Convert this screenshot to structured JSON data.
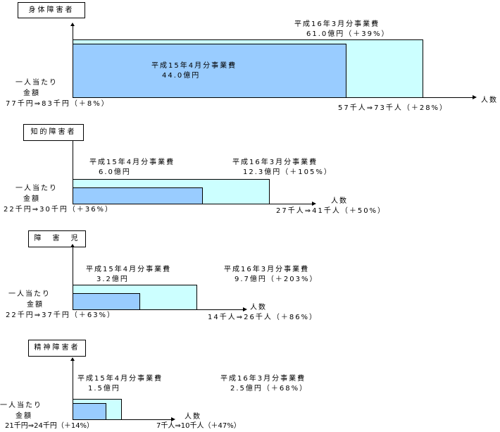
{
  "colors": {
    "before": "#99ccff",
    "after": "#ccffff"
  },
  "panels": [
    {
      "title": "身体障害者",
      "before_label": "平成15年4月分事業費",
      "before_value": "44.0億円",
      "after_label": "平成16年3月分事業費",
      "after_value": "61.0億円（＋39%）",
      "y_label_1": "一人当たり",
      "y_label_2": "金額",
      "per_person": "77千円⇒83千円（＋8%）",
      "x_label": "人数",
      "persons": "57千人⇒73千人（＋28%）"
    },
    {
      "title": "知的障害者",
      "before_label": "平成15年4月分事業費",
      "before_value": "6.0億円",
      "after_label": "平成16年3月分事業費",
      "after_value": "12.3億円（＋105%）",
      "y_label_1": "一人当たり",
      "y_label_2": "金額",
      "per_person": "22千円⇒30千円（＋36%）",
      "x_label": "人数",
      "persons": "27千人⇒41千人（＋50%）"
    },
    {
      "title": "障　害　児",
      "before_label": "平成15年4月分事業費",
      "before_value": "3.2億円",
      "after_label": "平成16年3月分事業費",
      "after_value": "9.7億円（＋203%）",
      "y_label_1": "一人当たり",
      "y_label_2": "金額",
      "per_person": "22千円⇒37千円（＋63%）",
      "x_label": "人数",
      "persons": "14千人⇒26千人（＋86%）"
    },
    {
      "title": "精神障害者",
      "before_label": "平成15年4月分事業費",
      "before_value": "1.5億円",
      "after_label": "平成16年3月分事業費",
      "after_value": "2.5億円（＋68%）",
      "y_label_1": "一人当たり",
      "y_label_2": "金額",
      "per_person": "21千円⇒24千円（＋14%）",
      "x_label": "人数",
      "persons": "7千人⇒10千人（＋47%）"
    }
  ]
}
